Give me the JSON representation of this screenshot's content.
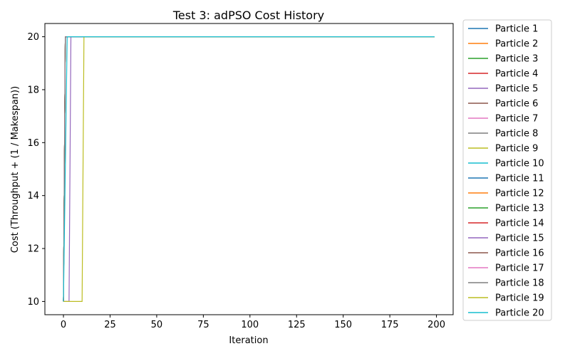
{
  "chart_data": {
    "type": "line",
    "title": "Test 3: adPSO Cost History",
    "xlabel": "Iteration",
    "ylabel": "Cost (Throughput + (1 / Makespan))",
    "xlim": [
      -9.95,
      208.95
    ],
    "ylim": [
      9.5,
      20.5
    ],
    "xticks": [
      0,
      25,
      50,
      75,
      100,
      125,
      150,
      175,
      200
    ],
    "yticks": [
      10,
      12,
      14,
      16,
      18,
      20
    ],
    "grid": false,
    "legend_position": "outside-right",
    "x_max": 199,
    "series": [
      {
        "name": "Particle 1",
        "color": "#1f77b4",
        "points": [
          [
            0,
            10
          ],
          [
            1,
            20
          ],
          [
            199,
            20
          ]
        ]
      },
      {
        "name": "Particle 2",
        "color": "#ff7f0e",
        "points": [
          [
            0,
            10
          ],
          [
            1,
            20
          ],
          [
            199,
            20
          ]
        ]
      },
      {
        "name": "Particle 3",
        "color": "#2ca02c",
        "points": [
          [
            0,
            10
          ],
          [
            1,
            20
          ],
          [
            199,
            20
          ]
        ]
      },
      {
        "name": "Particle 4",
        "color": "#d62728",
        "points": [
          [
            0,
            10
          ],
          [
            1,
            20
          ],
          [
            199,
            20
          ]
        ]
      },
      {
        "name": "Particle 5",
        "color": "#9467bd",
        "points": [
          [
            0,
            10
          ],
          [
            1,
            20
          ],
          [
            199,
            20
          ]
        ]
      },
      {
        "name": "Particle 6",
        "color": "#8c564b",
        "points": [
          [
            0,
            10
          ],
          [
            1,
            20
          ],
          [
            199,
            20
          ]
        ]
      },
      {
        "name": "Particle 7",
        "color": "#e377c2",
        "points": [
          [
            0,
            10
          ],
          [
            1,
            20
          ],
          [
            199,
            20
          ]
        ]
      },
      {
        "name": "Particle 8",
        "color": "#7f7f7f",
        "points": [
          [
            0,
            10
          ],
          [
            1,
            20
          ],
          [
            199,
            20
          ]
        ]
      },
      {
        "name": "Particle 9",
        "color": "#bcbd22",
        "points": [
          [
            0,
            10
          ],
          [
            1,
            20
          ],
          [
            199,
            20
          ]
        ]
      },
      {
        "name": "Particle 10",
        "color": "#17becf",
        "points": [
          [
            0,
            10
          ],
          [
            1,
            20
          ],
          [
            199,
            20
          ]
        ]
      },
      {
        "name": "Particle 11",
        "color": "#1f77b4",
        "points": [
          [
            0,
            10
          ],
          [
            1,
            20
          ],
          [
            199,
            20
          ]
        ]
      },
      {
        "name": "Particle 12",
        "color": "#ff7f0e",
        "points": [
          [
            0,
            10
          ],
          [
            1,
            20
          ],
          [
            199,
            20
          ]
        ]
      },
      {
        "name": "Particle 13",
        "color": "#2ca02c",
        "points": [
          [
            0,
            10
          ],
          [
            1,
            20
          ],
          [
            199,
            20
          ]
        ]
      },
      {
        "name": "Particle 14",
        "color": "#d62728",
        "points": [
          [
            0,
            10
          ],
          [
            1,
            20
          ],
          [
            199,
            20
          ]
        ]
      },
      {
        "name": "Particle 15",
        "color": "#9467bd",
        "points": [
          [
            0,
            10
          ],
          [
            3,
            10
          ],
          [
            4,
            20
          ],
          [
            199,
            20
          ]
        ]
      },
      {
        "name": "Particle 16",
        "color": "#8c564b",
        "points": [
          [
            0,
            10
          ],
          [
            1,
            20
          ],
          [
            199,
            20
          ]
        ]
      },
      {
        "name": "Particle 17",
        "color": "#e377c2",
        "points": [
          [
            0,
            10
          ],
          [
            1,
            20
          ],
          [
            199,
            20
          ]
        ]
      },
      {
        "name": "Particle 18",
        "color": "#7f7f7f",
        "points": [
          [
            0,
            10
          ],
          [
            1,
            20
          ],
          [
            199,
            20
          ]
        ]
      },
      {
        "name": "Particle 19",
        "color": "#bcbd22",
        "points": [
          [
            0,
            10
          ],
          [
            10,
            10
          ],
          [
            11,
            20
          ],
          [
            199,
            20
          ]
        ]
      },
      {
        "name": "Particle 20",
        "color": "#17becf",
        "points": [
          [
            0,
            10
          ],
          [
            2,
            20
          ],
          [
            199,
            20
          ]
        ]
      }
    ]
  }
}
